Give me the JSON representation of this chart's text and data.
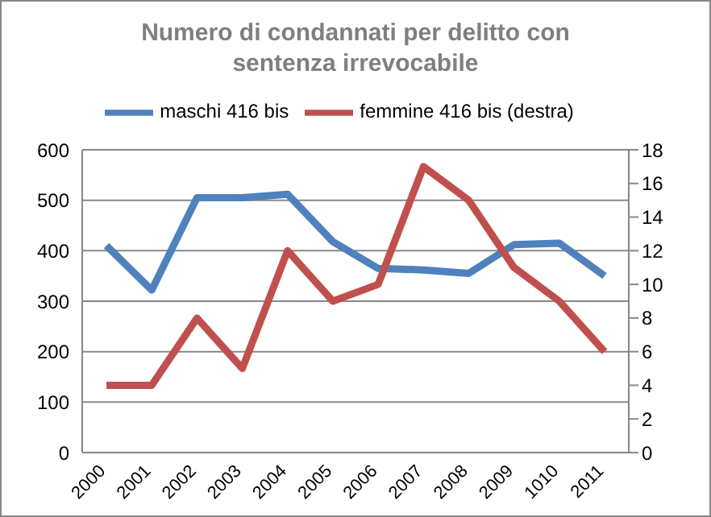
{
  "chart_data": {
    "type": "line",
    "title": "Numero di condannati per delitto con sentenza irrevocabile",
    "categories": [
      "2000",
      "2001",
      "2002",
      "2003",
      "2004",
      "2005",
      "2006",
      "2007",
      "2008",
      "2009",
      "1010",
      "2011"
    ],
    "series": [
      {
        "name": "maschi 416 bis",
        "color": "#4f81bd",
        "values": [
          410,
          322,
          505,
          505,
          512,
          418,
          365,
          362,
          355,
          412,
          415,
          350
        ]
      },
      {
        "name": "femmine 416 bis (destra)",
        "color": "#c0504d",
        "axis": "y2",
        "values": [
          4,
          4,
          8,
          5,
          12,
          9,
          10,
          17,
          15,
          11,
          9,
          6
        ]
      }
    ],
    "ylim": [
      0,
      600
    ],
    "yticks": [
      0,
      100,
      200,
      300,
      400,
      500,
      600
    ],
    "y2lim": [
      0,
      18
    ],
    "y2ticks": [
      0,
      2,
      4,
      6,
      8,
      10,
      12,
      14,
      16,
      18
    ],
    "grid": "y",
    "legend": "top",
    "marker": "none",
    "line_style": "solid"
  }
}
